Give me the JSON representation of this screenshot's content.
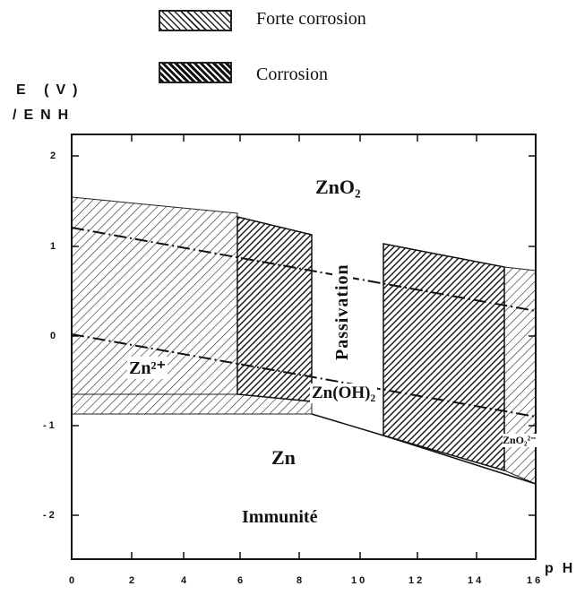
{
  "legend": {
    "strong": {
      "label": "Forte corrosion"
    },
    "corrosion": {
      "label": "Corrosion"
    }
  },
  "axes": {
    "y_title_line1": "E (V)",
    "y_title_line2": "/ENH",
    "x_title": "pH",
    "y_ticks": [
      "2",
      "1",
      "0",
      "-1",
      "-2"
    ],
    "x_ticks": [
      "0",
      "2",
      "4",
      "6",
      "8",
      "10",
      "12",
      "14",
      "16"
    ]
  },
  "regions": {
    "zno2": "ZnO₂",
    "passivation": "Passivation",
    "zn2plus": "Zn²⁺",
    "znoh2": "Zn(OH)₂",
    "zno2_2minus": "ZnO₂²⁻",
    "zn": "Zn",
    "immunite": "Immunité"
  },
  "colors": {
    "hatch": "#222222",
    "frame": "#111111",
    "background": "#ffffff"
  }
}
